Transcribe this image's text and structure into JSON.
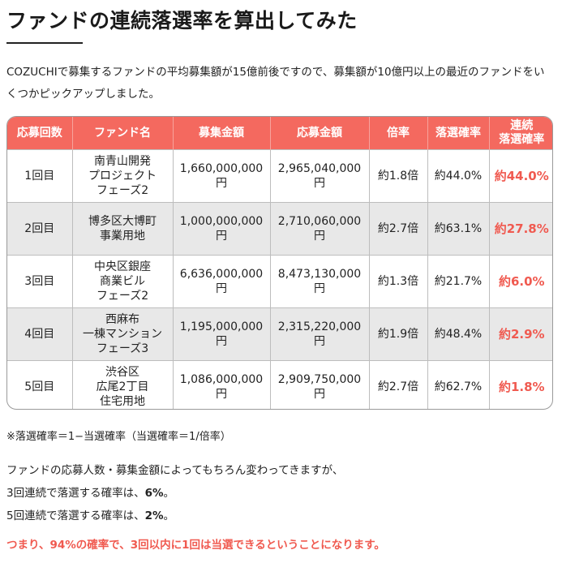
{
  "title": "ファンドの連続落選率を算出してみた",
  "intro": "COZUCHIで募集するファンドの平均募集額が15億前後ですので、募集額が10億円以上の最近のファンドをいくつかピックアップしました。",
  "table": {
    "headers": [
      "応募回数",
      "ファンド名",
      "募集金額",
      "応募金額",
      "倍率",
      "落選確率",
      "連続\n落選確率"
    ],
    "rows": [
      [
        "1回目",
        "南青山開発\nプロジェクト\nフェーズ2",
        "1,660,000,000\n円",
        "2,965,040,000\n円",
        "約1.8倍",
        "約44.0%",
        "約44.0%"
      ],
      [
        "2回目",
        "博多区大博町\n事業用地",
        "1,000,000,000\n円",
        "2,710,060,000\n円",
        "約2.7倍",
        "約63.1%",
        "約27.8%"
      ],
      [
        "3回目",
        "中央区銀座\n商業ビル\nフェーズ2",
        "6,636,000,000\n円",
        "8,473,130,000\n円",
        "約1.3倍",
        "約21.7%",
        "約6.0%"
      ],
      [
        "4回目",
        "西麻布\n一棟マンション\nフェーズ3",
        "1,195,000,000\n円",
        "2,315,220,000\n円",
        "約1.9倍",
        "約48.4%",
        "約2.9%"
      ],
      [
        "5回目",
        "渋谷区\n広尾2丁目\n住宅用地",
        "1,086,000,000\n円",
        "2,909,750,000\n円",
        "約2.7倍",
        "約62.7%",
        "約1.8%"
      ]
    ]
  },
  "note": "※落選確率＝1−当選確率（当選確率＝1/倍率）",
  "body": {
    "line1": "ファンドの応募人数・募集金額によってもちろん変わってきますが、",
    "line2_prefix": "3回連続で落選する確率は、",
    "line2_value": "6%",
    "line2_suffix": "。",
    "line3_prefix": "5回連続で落選する確率は、",
    "line3_value": "2%",
    "line3_suffix": "。"
  },
  "conclusion": "つまり、94%の確率で、3回以内に1回は当選できるということになります。",
  "colors": {
    "accent": "#f4695f",
    "highlight_text": "#f05a50",
    "row_alt": "#e8e8e8"
  }
}
